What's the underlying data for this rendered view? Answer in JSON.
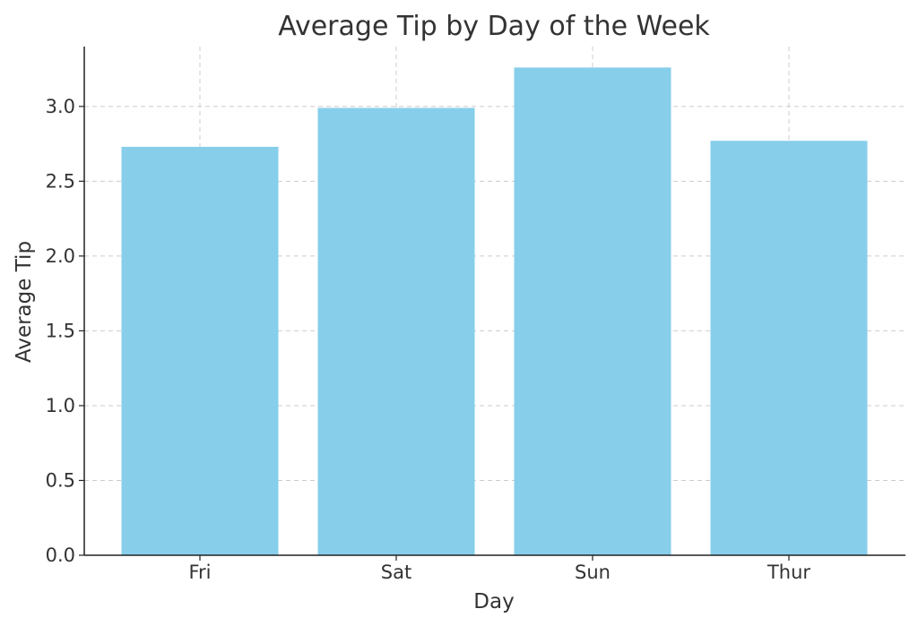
{
  "chart_data": {
    "type": "bar",
    "title": "Average Tip by Day of the Week",
    "xlabel": "Day",
    "ylabel": "Average Tip",
    "categories": [
      "Fri",
      "Sat",
      "Sun",
      "Thur"
    ],
    "values": [
      2.73,
      2.99,
      3.26,
      2.77
    ],
    "ylim": [
      0,
      3.4
    ],
    "yticks": [
      0.0,
      0.5,
      1.0,
      1.5,
      2.0,
      2.5,
      3.0
    ],
    "ytick_labels": [
      "0.0",
      "0.5",
      "1.0",
      "1.5",
      "2.0",
      "2.5",
      "3.0"
    ],
    "grid": true,
    "bar_color": "#87ceeb",
    "grid_color": "#cccccc",
    "text_color": "#333333"
  }
}
